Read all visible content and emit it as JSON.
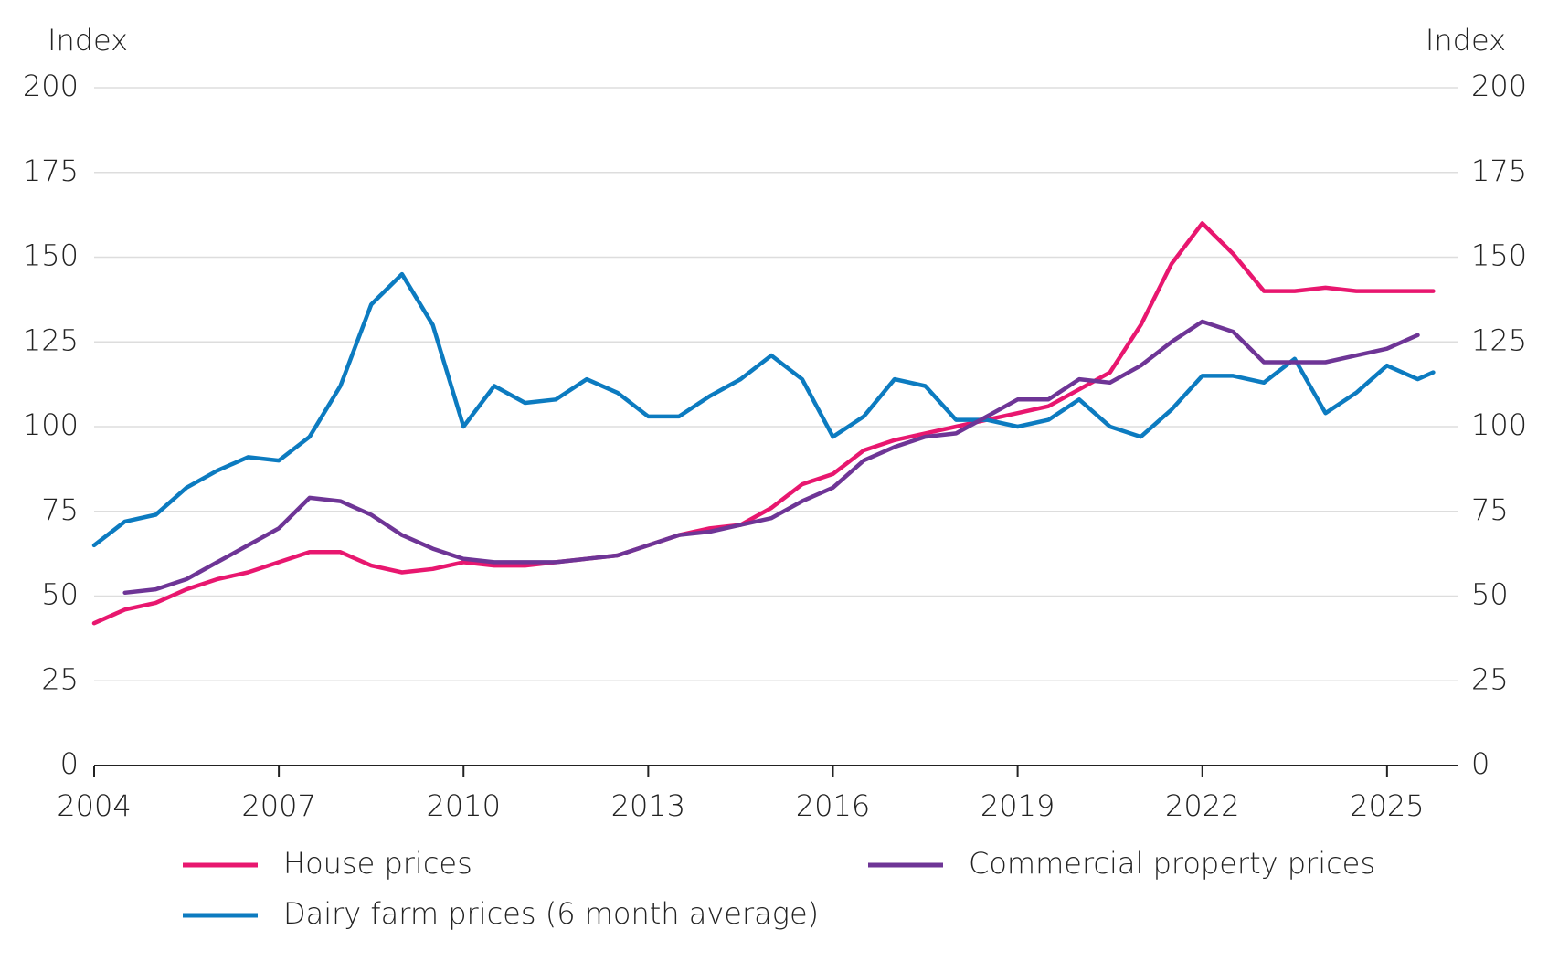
{
  "chart_data": {
    "type": "line",
    "y_label": "Index",
    "y2_label": "Index",
    "x": [
      2004,
      2004.5,
      2005,
      2005.5,
      2006,
      2006.5,
      2007,
      2007.5,
      2008,
      2008.5,
      2009,
      2009.5,
      2010,
      2010.5,
      2011,
      2011.5,
      2012,
      2012.5,
      2013,
      2013.5,
      2014,
      2014.5,
      2015,
      2015.5,
      2016,
      2016.5,
      2017,
      2017.5,
      2018,
      2018.5,
      2019,
      2019.5,
      2020,
      2020.5,
      2021,
      2021.5,
      2022,
      2022.5,
      2023,
      2023.5,
      2024,
      2024.5,
      2025,
      2025.5,
      2025.75
    ],
    "series": [
      {
        "name": "House prices",
        "color": "#e8176f",
        "values": [
          42,
          46,
          48,
          52,
          55,
          57,
          60,
          63,
          63,
          59,
          57,
          58,
          60,
          59,
          59,
          60,
          61,
          62,
          65,
          68,
          70,
          71,
          76,
          83,
          86,
          93,
          96,
          98,
          100,
          102,
          104,
          106,
          111,
          116,
          130,
          148,
          160,
          151,
          140,
          140,
          141,
          140,
          140,
          140,
          140
        ]
      },
      {
        "name": "Dairy farm prices (6 month average)",
        "color": "#0c7bc0",
        "values": [
          65,
          72,
          74,
          82,
          87,
          91,
          90,
          97,
          112,
          136,
          145,
          130,
          100,
          112,
          107,
          108,
          114,
          110,
          103,
          103,
          109,
          114,
          121,
          114,
          97,
          103,
          114,
          112,
          102,
          102,
          100,
          102,
          108,
          100,
          97,
          105,
          115,
          115,
          113,
          120,
          104,
          110,
          118,
          114,
          116
        ]
      },
      {
        "name": "Commercial property prices",
        "color": "#6e3596",
        "values": [
          null,
          51,
          52,
          55,
          60,
          65,
          70,
          79,
          78,
          74,
          68,
          64,
          61,
          60,
          60,
          60,
          61,
          62,
          65,
          68,
          69,
          71,
          73,
          78,
          82,
          90,
          94,
          97,
          98,
          103,
          108,
          108,
          114,
          113,
          118,
          125,
          131,
          128,
          119,
          119,
          119,
          121,
          123,
          127,
          null
        ]
      }
    ],
    "xlim": [
      2004,
      2026.16
    ],
    "xticks": [
      2004,
      2007,
      2010,
      2013,
      2016,
      2019,
      2022,
      2025
    ],
    "ylim": [
      0,
      200
    ],
    "yticks": [
      0,
      25,
      50,
      75,
      100,
      125,
      150,
      175,
      200
    ],
    "y2lim": [
      0,
      200
    ],
    "y2ticks": [
      0,
      25,
      50,
      75,
      100,
      125,
      150,
      175,
      200
    ],
    "grid": true
  }
}
